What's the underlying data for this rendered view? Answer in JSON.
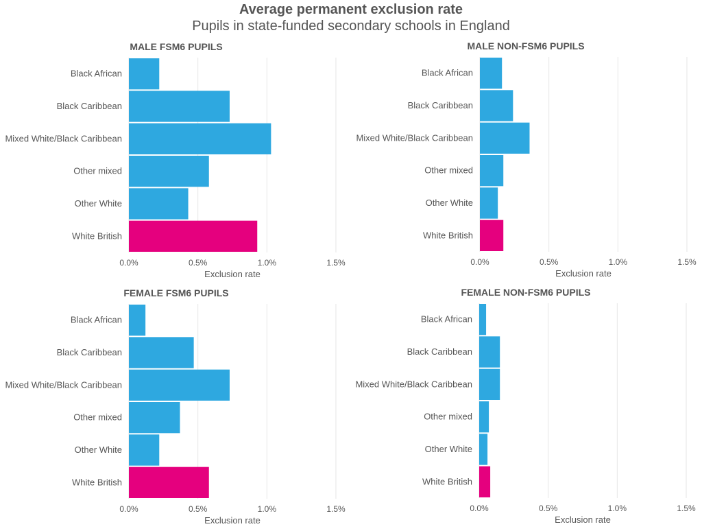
{
  "title": "Average permanent exclusion rate",
  "subtitle": "Pupils in state-funded secondary schools in England",
  "colors": {
    "bar": "#2ea8e0",
    "highlight": "#e5007e",
    "grid": "#e6e6e6"
  },
  "chart_data": [
    {
      "type": "bar",
      "orientation": "horizontal",
      "title": "MALE FSM6 PUPILS",
      "categories": [
        "Black African",
        "Black Caribbean",
        "Mixed White/Black Caribbean",
        "Other mixed",
        "Other White",
        "White British"
      ],
      "values": [
        0.0022,
        0.0073,
        0.0103,
        0.0058,
        0.0043,
        0.0093
      ],
      "highlight": "White British",
      "xlabel": "Exclusion rate",
      "xlim": [
        0,
        0.015
      ],
      "xticks": [
        "0.0%",
        "0.5%",
        "1.0%",
        "1.5%"
      ]
    },
    {
      "type": "bar",
      "orientation": "horizontal",
      "title": "MALE NON-FSM6 PUPILS",
      "categories": [
        "Black African",
        "Black Caribbean",
        "Mixed White/Black Caribbean",
        "Other mixed",
        "Other White",
        "White British"
      ],
      "values": [
        0.0016,
        0.0024,
        0.0036,
        0.0017,
        0.0013,
        0.0017
      ],
      "highlight": "White British",
      "xlabel": "Exclusion rate",
      "xlim": [
        0,
        0.015
      ],
      "xticks": [
        "0.0%",
        "0.5%",
        "1.0%",
        "1.5%"
      ]
    },
    {
      "type": "bar",
      "orientation": "horizontal",
      "title": "FEMALE FSM6 PUPILS",
      "categories": [
        "Black African",
        "Black Caribbean",
        "Mixed White/Black Caribbean",
        "Other mixed",
        "Other White",
        "White British"
      ],
      "values": [
        0.0012,
        0.0047,
        0.0073,
        0.0037,
        0.0022,
        0.0058
      ],
      "highlight": "White British",
      "xlabel": "Exclusion rate",
      "xlim": [
        0,
        0.015
      ],
      "xticks": [
        "0.0%",
        "0.5%",
        "1.0%",
        "1.5%"
      ]
    },
    {
      "type": "bar",
      "orientation": "horizontal",
      "title": "FEMALE NON-FSM6 PUPILS",
      "categories": [
        "Black African",
        "Black Caribbean",
        "Mixed White/Black Caribbean",
        "Other mixed",
        "Other White",
        "White British"
      ],
      "values": [
        0.0005,
        0.0015,
        0.0015,
        0.0007,
        0.0006,
        0.0008
      ],
      "highlight": "White British",
      "xlabel": "Exclusion rate",
      "xlim": [
        0,
        0.015
      ],
      "xticks": [
        "0.0%",
        "0.5%",
        "1.0%",
        "1.5%"
      ]
    }
  ]
}
